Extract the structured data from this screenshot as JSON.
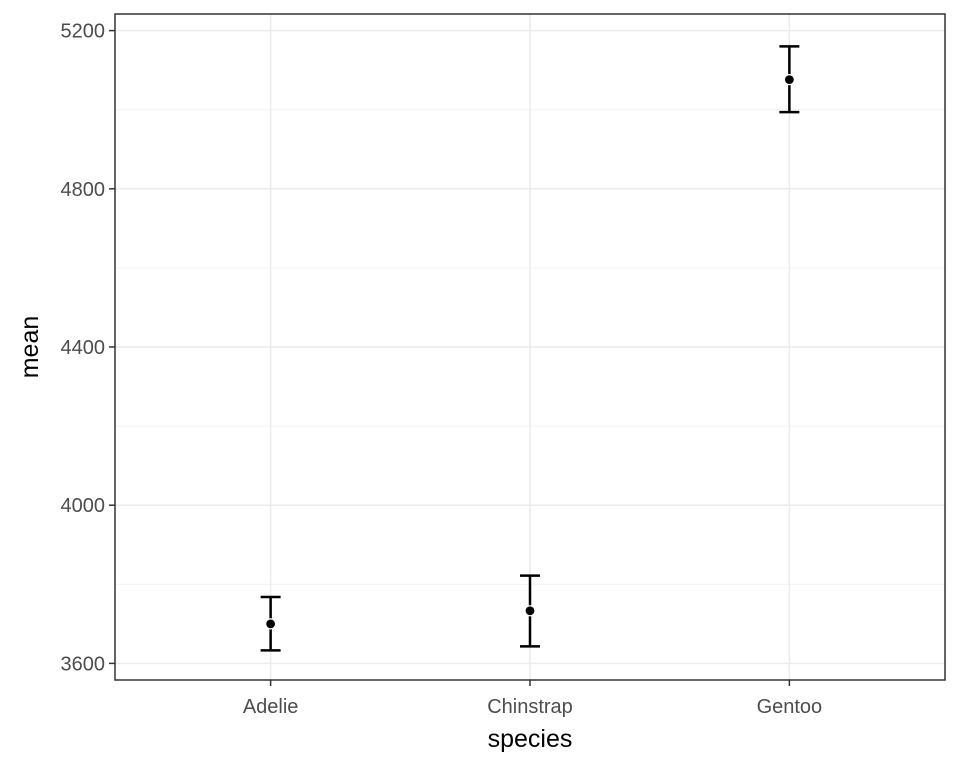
{
  "chart_data": {
    "type": "scatter",
    "title": "",
    "xlabel": "species",
    "ylabel": "mean",
    "categories": [
      "Adelie",
      "Chinstrap",
      "Gentoo"
    ],
    "series": [
      {
        "values": [
          3700,
          3733,
          5076
        ],
        "error_low": [
          3633,
          3643,
          4994
        ],
        "error_high": [
          3768,
          3822,
          5160
        ]
      }
    ],
    "y_ticks": [
      3600,
      4000,
      4400,
      4800,
      5200
    ],
    "y_tick_labels": [
      "3600",
      "4000",
      "4400",
      "4800",
      "5200"
    ],
    "ylim": [
      3558,
      5242
    ],
    "grid": true,
    "legend": "none"
  }
}
